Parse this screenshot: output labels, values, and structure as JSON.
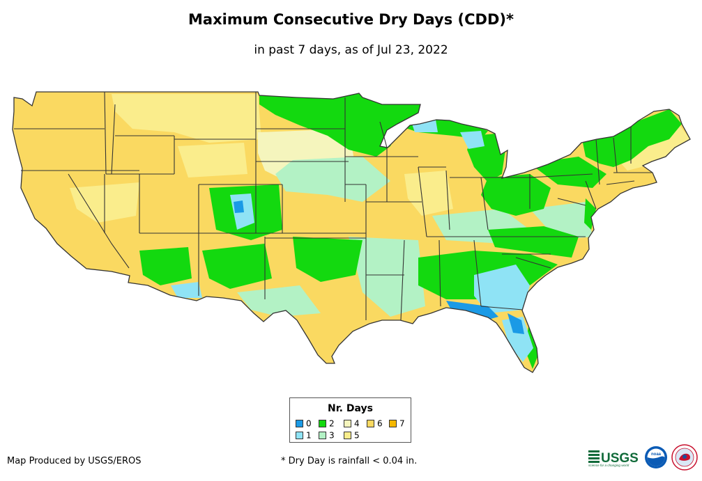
{
  "title": "Maximum Consecutive Dry Days (CDD)*",
  "subtitle": "in past 7 days, as of Jul 23, 2022",
  "legend": {
    "title": "Nr. Days",
    "items": [
      {
        "label": "0",
        "color": "#1a9ae6"
      },
      {
        "label": "1",
        "color": "#8fe3f5"
      },
      {
        "label": "2",
        "color": "#13d90f"
      },
      {
        "label": "3",
        "color": "#b3f2c5"
      },
      {
        "label": "4",
        "color": "#f5f5bd"
      },
      {
        "label": "5",
        "color": "#faed8c"
      },
      {
        "label": "6",
        "color": "#fad961"
      },
      {
        "label": "7",
        "color": "#f5b800"
      }
    ]
  },
  "footer": {
    "credit": "Map Produced by USGS/EROS",
    "footnote": "* Dry Day is rainfall < 0.04 in."
  },
  "logos": {
    "usgs_text": "USGS",
    "usgs_tagline": "science for a changing world",
    "noaa_text": "noaa"
  },
  "map_colors": {
    "base": "#fad961",
    "light": "#faed8c",
    "pale": "#f5f5bd",
    "mint": "#b3f2c5",
    "green": "#13d90f",
    "cyan": "#8fe3f5",
    "blue": "#1a9ae6",
    "border": "#333333"
  }
}
